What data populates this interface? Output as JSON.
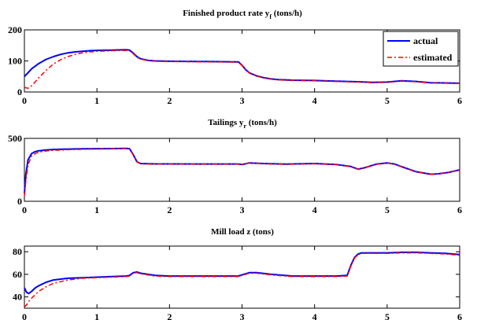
{
  "colors": {
    "actual": "#0000ff",
    "estimated": "#ff0000",
    "axes": "#000000",
    "background": "#ffffff"
  },
  "chart_data": [
    {
      "type": "line",
      "title_main": "Finished product rate y",
      "title_sub": "f",
      "title_tail": " (tons/h)",
      "xlim": [
        0,
        6
      ],
      "ylim": [
        0,
        200
      ],
      "xticks": [
        0,
        1,
        2,
        3,
        4,
        5,
        6
      ],
      "yticks": [
        0,
        100,
        200
      ],
      "grid": false,
      "legend": {
        "position": "top-right",
        "entries": [
          "actual",
          "estimated"
        ]
      },
      "series": [
        {
          "name": "actual",
          "style": "solid",
          "x": [
            0,
            0.05,
            0.1,
            0.2,
            0.3,
            0.4,
            0.5,
            0.6,
            0.7,
            0.8,
            0.9,
            1.0,
            1.2,
            1.4,
            1.45,
            1.5,
            1.55,
            1.6,
            1.7,
            1.8,
            2.0,
            2.5,
            2.95,
            3.0,
            3.05,
            3.1,
            3.2,
            3.3,
            3.4,
            3.5,
            3.7,
            4.0,
            4.3,
            4.6,
            4.8,
            5.0,
            5.2,
            5.4,
            5.6,
            5.8,
            6.0
          ],
          "y": [
            50,
            62,
            75,
            92,
            105,
            114,
            121,
            126,
            129,
            131,
            133,
            134,
            135,
            136,
            135,
            125,
            114,
            107,
            102,
            100,
            99,
            98,
            97,
            86,
            72,
            62,
            52,
            46,
            42,
            40,
            38,
            37,
            35,
            33,
            31,
            32,
            36,
            34,
            30,
            29,
            28
          ]
        },
        {
          "name": "estimated",
          "style": "dashdot",
          "x": [
            0,
            0.05,
            0.1,
            0.15,
            0.2,
            0.3,
            0.4,
            0.5,
            0.6,
            0.7,
            0.8,
            0.9,
            1.0,
            1.2,
            1.4,
            1.45,
            1.5,
            1.55,
            1.6,
            1.7,
            1.8,
            2.0,
            2.5,
            2.95,
            3.0,
            3.05,
            3.1,
            3.2,
            3.3,
            3.4,
            3.5,
            3.7,
            4.0,
            4.3,
            4.6,
            4.8,
            5.0,
            5.2,
            5.4,
            5.6,
            5.8,
            6.0
          ],
          "y": [
            15,
            12,
            20,
            33,
            46,
            70,
            90,
            104,
            114,
            121,
            126,
            129,
            131,
            133,
            134,
            133,
            123,
            112,
            106,
            101,
            99,
            98,
            97,
            96,
            85,
            71,
            61,
            51,
            45,
            41,
            39,
            37,
            36,
            34,
            32,
            30,
            31,
            35,
            33,
            29,
            28,
            27
          ]
        }
      ]
    },
    {
      "type": "line",
      "title_main": "Tailings y",
      "title_sub": "r",
      "title_tail": " (tons/h)",
      "xlim": [
        0,
        6
      ],
      "ylim": [
        0,
        500
      ],
      "xticks": [
        0,
        1,
        2,
        3,
        4,
        5,
        6
      ],
      "yticks": [
        0,
        500
      ],
      "grid": false,
      "series": [
        {
          "name": "actual",
          "style": "solid",
          "x": [
            0,
            0.02,
            0.05,
            0.1,
            0.15,
            0.2,
            0.3,
            0.4,
            0.6,
            0.8,
            1.0,
            1.2,
            1.4,
            1.45,
            1.5,
            1.55,
            1.6,
            1.7,
            1.8,
            2.0,
            2.5,
            2.95,
            3.0,
            3.05,
            3.1,
            3.3,
            3.6,
            4.0,
            4.3,
            4.5,
            4.6,
            4.7,
            4.85,
            5.0,
            5.1,
            5.2,
            5.4,
            5.6,
            5.7,
            5.85,
            6.0
          ],
          "y": [
            60,
            210,
            330,
            380,
            395,
            402,
            408,
            412,
            415,
            417,
            418,
            419,
            420,
            418,
            370,
            315,
            300,
            298,
            297,
            297,
            296,
            296,
            292,
            298,
            305,
            300,
            295,
            300,
            292,
            276,
            255,
            268,
            295,
            305,
            296,
            275,
            235,
            215,
            218,
            230,
            250
          ]
        },
        {
          "name": "estimated",
          "style": "dashdot",
          "x": [
            0,
            0.02,
            0.05,
            0.1,
            0.15,
            0.2,
            0.3,
            0.4,
            0.6,
            0.8,
            1.0,
            1.2,
            1.4,
            1.45,
            1.5,
            1.55,
            1.6,
            1.7,
            1.8,
            2.0,
            2.5,
            2.95,
            3.0,
            3.05,
            3.1,
            3.3,
            3.6,
            4.0,
            4.3,
            4.5,
            4.6,
            4.7,
            4.85,
            5.0,
            5.1,
            5.2,
            5.4,
            5.6,
            5.7,
            5.85,
            6.0
          ],
          "y": [
            40,
            160,
            290,
            360,
            380,
            390,
            400,
            405,
            410,
            413,
            415,
            416,
            418,
            416,
            368,
            313,
            298,
            296,
            296,
            296,
            295,
            295,
            291,
            297,
            304,
            299,
            294,
            299,
            291,
            275,
            254,
            267,
            294,
            304,
            295,
            274,
            234,
            214,
            217,
            229,
            249
          ]
        }
      ]
    },
    {
      "type": "line",
      "title_main": "Mill load z (tons)",
      "xlim": [
        0,
        6
      ],
      "ylim": [
        30,
        85
      ],
      "xticks": [
        0,
        1,
        2,
        3,
        4,
        5,
        6
      ],
      "yticks": [
        40,
        60,
        80
      ],
      "grid": false,
      "series": [
        {
          "name": "actual",
          "style": "solid",
          "x": [
            0,
            0.03,
            0.06,
            0.1,
            0.15,
            0.2,
            0.3,
            0.4,
            0.6,
            0.8,
            1.0,
            1.2,
            1.4,
            1.45,
            1.5,
            1.55,
            1.6,
            1.7,
            1.8,
            2.0,
            2.5,
            2.95,
            3.0,
            3.1,
            3.2,
            3.4,
            3.7,
            4.0,
            4.3,
            4.45,
            4.5,
            4.55,
            4.6,
            4.65,
            4.7,
            4.8,
            5.0,
            5.2,
            5.4,
            5.6,
            5.8,
            6.0
          ],
          "y": [
            48,
            44,
            43,
            45,
            48,
            50,
            53,
            55,
            56.5,
            57,
            57.5,
            58,
            58.5,
            59,
            61.5,
            62,
            61,
            60,
            59,
            58.5,
            58.5,
            58.5,
            59.5,
            61.5,
            61.5,
            60,
            58.5,
            58.5,
            58.5,
            59,
            68,
            75,
            78,
            79,
            79,
            79,
            79,
            79.5,
            79.5,
            79,
            78.5,
            77.5
          ]
        },
        {
          "name": "estimated",
          "style": "dashdot",
          "x": [
            0,
            0.03,
            0.06,
            0.1,
            0.15,
            0.2,
            0.3,
            0.4,
            0.6,
            0.8,
            1.0,
            1.2,
            1.4,
            1.45,
            1.5,
            1.55,
            1.6,
            1.7,
            1.8,
            2.0,
            2.5,
            2.95,
            3.0,
            3.1,
            3.2,
            3.4,
            3.7,
            4.0,
            4.3,
            4.45,
            4.5,
            4.55,
            4.6,
            4.65,
            4.7,
            4.8,
            5.0,
            5.2,
            5.4,
            5.6,
            5.8,
            6.0
          ],
          "y": [
            31,
            33,
            36,
            39,
            42,
            45,
            49,
            52,
            55,
            56.5,
            57,
            57.5,
            58,
            58.5,
            61,
            61.5,
            60.5,
            59.5,
            58.5,
            58,
            58,
            58,
            59,
            61,
            61,
            59.5,
            58,
            58,
            58,
            58.5,
            67.5,
            74.5,
            77.5,
            78.5,
            78.5,
            78.5,
            78.5,
            79,
            79,
            78.5,
            78,
            77
          ]
        }
      ]
    }
  ]
}
